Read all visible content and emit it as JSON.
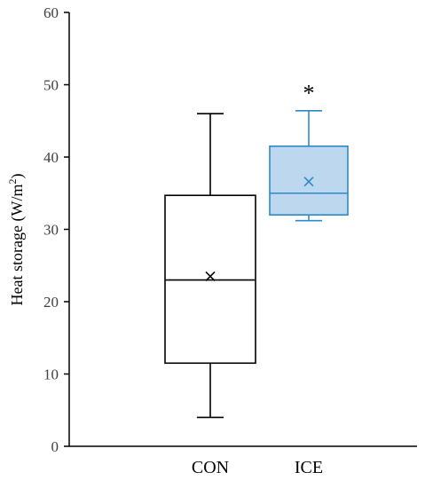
{
  "chart_data": {
    "type": "boxplot",
    "ylabel_main": "Heat storage (W/m",
    "ylabel_sup": "2",
    "ylabel_end": ")",
    "ylim": [
      0,
      60
    ],
    "yticks": [
      "0",
      "10",
      "20",
      "30",
      "40",
      "50",
      "60"
    ],
    "categories": [
      "CON",
      "ICE"
    ],
    "boxes": [
      {
        "category": "CON",
        "min": 4,
        "q1": 11.5,
        "median": 23,
        "q3": 34.7,
        "max": 46,
        "mean": 23.5,
        "stroke": "#000000",
        "fill": "#ffffff"
      },
      {
        "category": "ICE",
        "min": 31.2,
        "q1": 32,
        "median": 35,
        "q3": 41.5,
        "max": 46.4,
        "mean": 36.6,
        "stroke": "#2b8ac8",
        "fill": "#bdd7ee"
      }
    ],
    "annotations": [
      {
        "category": "ICE",
        "text": "*",
        "y": 50
      }
    ],
    "grid": false,
    "legend": "none"
  }
}
